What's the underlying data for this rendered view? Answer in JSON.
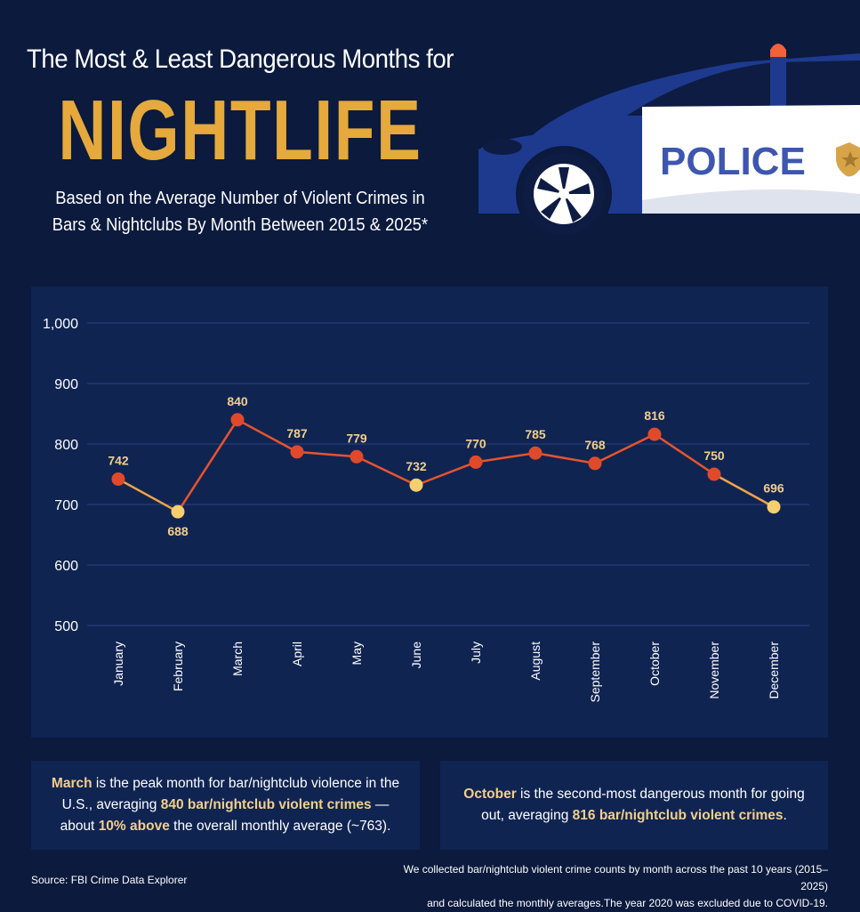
{
  "header": {
    "title_line1": "The Most & Least Dangerous Months for",
    "title_big": "NIGHTLIFE",
    "subtitle_line1": "Based on the Average Number of Violent Crimes in",
    "subtitle_line2": "Bars & Nightclubs By Month Between 2015 & 2025*"
  },
  "car": {
    "label": "POLICE",
    "body_color": "#1e3a8f",
    "light_color": "#f0623a"
  },
  "chart_data": {
    "type": "line",
    "categories": [
      "January",
      "February",
      "March",
      "April",
      "May",
      "June",
      "July",
      "August",
      "September",
      "October",
      "November",
      "December"
    ],
    "values": [
      742,
      688,
      840,
      787,
      779,
      732,
      770,
      785,
      768,
      816,
      750,
      696
    ],
    "data_labels": [
      "742",
      "688",
      "840",
      "787",
      "779",
      "732",
      "770",
      "785",
      "768",
      "816",
      "750",
      "696"
    ],
    "yticks": [
      "1,000",
      "900",
      "800",
      "700",
      "600",
      "500"
    ],
    "ylim": [
      500,
      1000
    ],
    "grid": true,
    "title": "",
    "xlabel": "",
    "ylabel": "",
    "colors": {
      "high": "#e04a2a",
      "low": "#f5cf6e",
      "line_high": "#e8542c",
      "line_low": "#f0a545",
      "grid": "#2a4080",
      "label": "#f2cf8a"
    }
  },
  "info": {
    "left": {
      "month": "March",
      "text1": " is the peak month for bar/nightclub violence in the U.S., averaging ",
      "value": "840 bar/nightclub violent crimes",
      "text2": " —about ",
      "pct": "10% above",
      "text3": " the overall monthly average (~763)."
    },
    "right": {
      "month": "October",
      "text1": " is the second-most dangerous month for going out, averaging ",
      "value": "816 bar/nightclub violent crimes",
      "text2": "."
    }
  },
  "footer": {
    "source": "Source: FBI Crime Data Explorer",
    "method_line1": "We collected bar/nightclub violent crime counts by month across the past 10 years (2015–2025)",
    "method_line2": "and calculated the monthly averages.The year 2020 was excluded due to COVID-19."
  }
}
